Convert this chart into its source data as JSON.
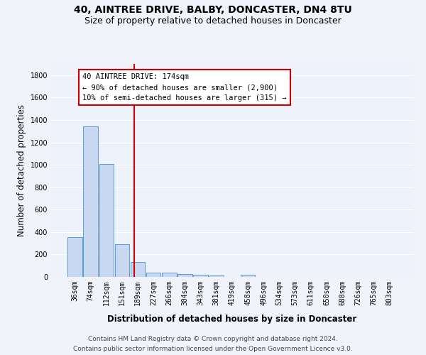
{
  "title1": "40, AINTREE DRIVE, BALBY, DONCASTER, DN4 8TU",
  "title2": "Size of property relative to detached houses in Doncaster",
  "xlabel": "Distribution of detached houses by size in Doncaster",
  "ylabel": "Number of detached properties",
  "categories": [
    "36sqm",
    "74sqm",
    "112sqm",
    "151sqm",
    "189sqm",
    "227sqm",
    "266sqm",
    "304sqm",
    "343sqm",
    "381sqm",
    "419sqm",
    "458sqm",
    "496sqm",
    "534sqm",
    "573sqm",
    "611sqm",
    "650sqm",
    "688sqm",
    "726sqm",
    "765sqm",
    "803sqm"
  ],
  "values": [
    355,
    1340,
    1010,
    290,
    130,
    40,
    35,
    25,
    20,
    15,
    0,
    20,
    0,
    0,
    0,
    0,
    0,
    0,
    0,
    0,
    0
  ],
  "bar_color": "#c8d8f0",
  "bar_edge_color": "#5b9bd5",
  "red_line_x": 3.77,
  "annotation_text": "40 AINTREE DRIVE: 174sqm\n← 90% of detached houses are smaller (2,900)\n10% of semi-detached houses are larger (315) →",
  "annotation_box_color": "#ffffff",
  "annotation_edge_color": "#cc0000",
  "ylim": [
    0,
    1900
  ],
  "yticks": [
    0,
    200,
    400,
    600,
    800,
    1000,
    1200,
    1400,
    1600,
    1800
  ],
  "bg_color": "#eef3fb",
  "grid_color": "#ffffff",
  "footnote1": "Contains HM Land Registry data © Crown copyright and database right 2024.",
  "footnote2": "Contains public sector information licensed under the Open Government Licence v3.0.",
  "title1_fontsize": 10,
  "title2_fontsize": 9,
  "xlabel_fontsize": 8.5,
  "ylabel_fontsize": 8.5,
  "annot_fontsize": 7.5,
  "footnote_fontsize": 6.5,
  "tick_fontsize": 7
}
